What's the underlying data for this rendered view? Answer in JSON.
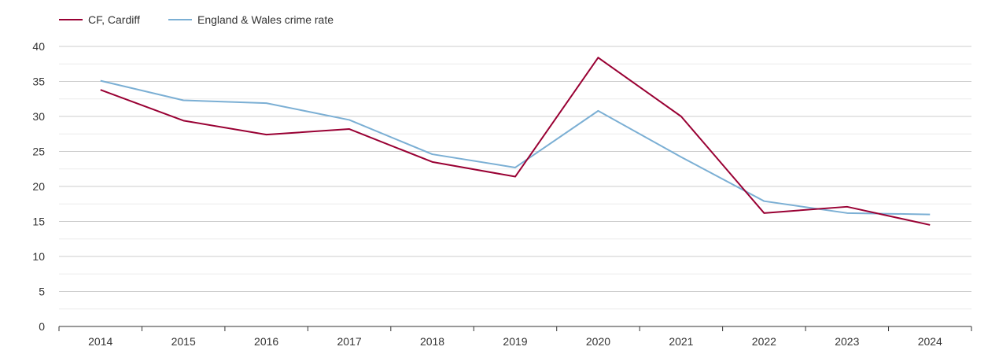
{
  "chart_data": {
    "type": "line",
    "title": "",
    "xlabel": "",
    "ylabel": "",
    "x": [
      "2014",
      "2015",
      "2016",
      "2017",
      "2018",
      "2019",
      "2020",
      "2021",
      "2022",
      "2023",
      "2024"
    ],
    "ylim": [
      0,
      40
    ],
    "yticks": [
      "0",
      "5",
      "10",
      "15",
      "20",
      "25",
      "30",
      "35",
      "40"
    ],
    "grid": true,
    "legend_position": "top-left",
    "series": [
      {
        "name": "CF, Cardiff",
        "color": "#990033",
        "values": [
          33.8,
          29.4,
          27.4,
          28.2,
          23.5,
          21.4,
          38.4,
          30.0,
          16.2,
          17.1,
          14.5
        ]
      },
      {
        "name": "England & Wales crime rate",
        "color": "#7bafd4",
        "values": [
          35.1,
          32.3,
          31.9,
          29.5,
          24.6,
          22.7,
          30.8,
          24.2,
          17.9,
          16.2,
          16.0
        ]
      }
    ]
  }
}
